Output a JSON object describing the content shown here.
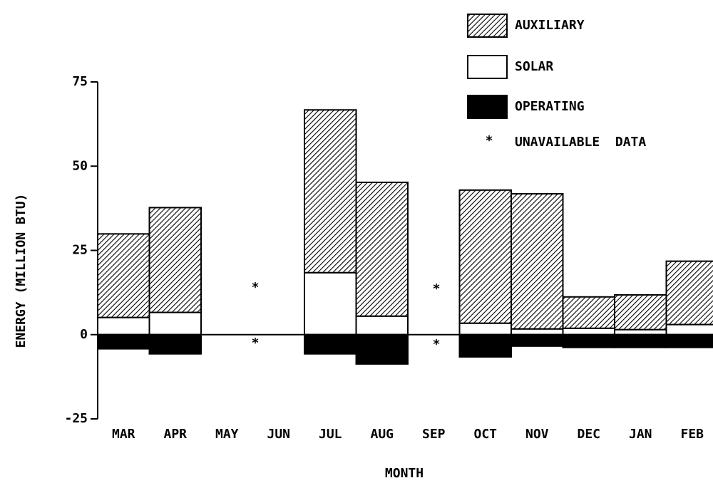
{
  "chart_data": {
    "type": "bar",
    "stacked": true,
    "ylabel": "ENERGY  (MILLION BTU)",
    "xlabel": "MONTH",
    "categories": [
      "MAR",
      "APR",
      "MAY",
      "JUN",
      "JUL",
      "AUG",
      "SEP",
      "OCT",
      "NOV",
      "DEC",
      "JAN",
      "FEB"
    ],
    "series": [
      {
        "name": "AUXILIARY",
        "color": "#000000",
        "pattern": "hatch",
        "values": [
          24.8,
          31.1,
          null,
          null,
          48.3,
          39.7,
          null,
          39.5,
          40.1,
          9.3,
          10.3,
          18.8
        ]
      },
      {
        "name": "SOLAR",
        "color": "#ffffff",
        "values": [
          5.1,
          6.6,
          null,
          null,
          18.4,
          5.5,
          null,
          3.4,
          1.7,
          1.9,
          1.5,
          3.0
        ]
      },
      {
        "name": "OPERATING",
        "color": "#000000",
        "values": [
          -4.2,
          -5.7,
          null,
          null,
          -5.7,
          -8.7,
          null,
          -6.6,
          -3.4,
          -3.8,
          -3.8,
          -3.8
        ]
      }
    ],
    "unavailable_symbol": "*",
    "unavailable_label": "UNAVAILABLE  DATA",
    "ylim": [
      -25,
      75
    ],
    "yticks": [
      -25,
      0,
      25,
      50,
      75
    ]
  }
}
